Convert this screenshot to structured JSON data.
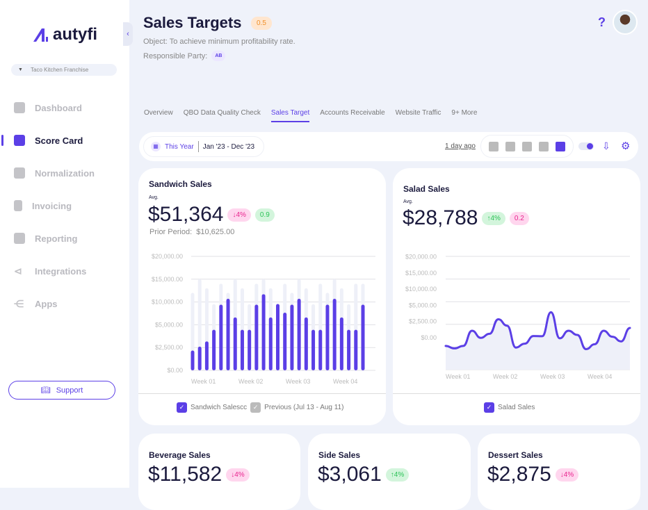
{
  "app": {
    "logo": "autyfi",
    "org": "Taco Kitchen Franchise",
    "support": "Support"
  },
  "sidebar": {
    "items": [
      {
        "label": "Dashboard"
      },
      {
        "label": "Score Card",
        "active": true
      },
      {
        "label": "Normalization"
      },
      {
        "label": "Invoicing"
      },
      {
        "label": "Reporting"
      },
      {
        "label": "Integrations"
      },
      {
        "label": "Apps"
      }
    ]
  },
  "header": {
    "title": "Sales Targets",
    "score": "0.5",
    "object": "Object:  To achieve minimum profitability rate.",
    "responsible_label": "Responsible Party:",
    "responsible": "AB",
    "help": "?"
  },
  "tabs": [
    "Overview",
    "QBO Data Quality Check",
    "Sales Target",
    "Accounts Receivable",
    "Website Traffic",
    "9+ More"
  ],
  "active_tab": "Sales Target",
  "toolbar": {
    "period": "This Year",
    "range": "Jan '23 - Dec '23",
    "updated": "1 day ago"
  },
  "colors": {
    "accent": "#5b3fe6",
    "prev": "#eef0f8"
  },
  "cards": {
    "sandwich": {
      "title": "Sandwich Sales",
      "avg_label": "Avg.",
      "value": "$51,364",
      "change": "↓4%",
      "score": "0.9",
      "prior_label": "Prior Period:",
      "prior": "$10,625.00",
      "legend": [
        "Sandwich Salescc",
        "Previous (Jul 13 - Aug 11)"
      ]
    },
    "salad": {
      "title": "Salad Sales",
      "avg_label": "Avg.",
      "value": "$28,788",
      "change": "↑4%",
      "score": "0.2",
      "legend": [
        "Salad Sales"
      ]
    },
    "beverage": {
      "title": "Beverage Sales",
      "value": "$11,582",
      "change": "↓4%"
    },
    "side": {
      "title": "Side Sales",
      "value": "$3,061",
      "change": "↑4%"
    },
    "dessert": {
      "title": "Dessert Sales",
      "value": "$2,875",
      "change": "↓4%"
    }
  },
  "chart_data": [
    {
      "type": "bar",
      "title": "Sandwich Sales",
      "ticks": [
        0,
        2500,
        5000,
        10000,
        15000,
        20000
      ],
      "tick_labels": [
        "$0.00",
        "$2,500.00",
        "$5,000.00",
        "$10,000.00",
        "$15,000.00",
        "$20,000.00"
      ],
      "x_labels": [
        "Week 01",
        "Week 02",
        "Week 03",
        "Week 04"
      ],
      "series": [
        {
          "name": "Sandwich Salescc",
          "values": [
            2175,
            2600,
            3175,
            4450,
            9400,
            10700,
            6600,
            4450,
            4450,
            9400,
            11700,
            6600,
            9550,
            7650,
            9400,
            10700,
            6600,
            4450,
            4450,
            9400,
            10700,
            6600,
            4450,
            4450,
            9400
          ]
        },
        {
          "name": "Previous (Jul 13 - Aug 11)",
          "values": [
            12000,
            15000,
            13000,
            9500,
            14000,
            12000,
            15000,
            13000,
            9500,
            14000,
            15000,
            13000,
            9500,
            14000,
            12000,
            15000,
            13000,
            9500,
            14000,
            12000,
            15000,
            13000,
            9500,
            14000,
            14000
          ]
        }
      ]
    },
    {
      "type": "area",
      "title": "Salad Sales",
      "ticks": [
        0,
        2500,
        5000,
        10000,
        15000,
        20000
      ],
      "tick_labels": [
        "$0.00",
        "$2,500.00",
        "$5,000.00",
        "$10,000.00",
        "$15,000.00",
        "$20,000.00"
      ],
      "x_labels": [
        "Week 01",
        "Week 02",
        "Week 03",
        "Week 04"
      ],
      "series": [
        {
          "name": "Salad Sales",
          "values": [
            -1275,
            -1650,
            -1275,
            1075,
            -25,
            600,
            2850,
            1850,
            -1525,
            -925,
            250,
            225,
            3925,
            -100,
            1075,
            425,
            -1775,
            -1000,
            1075,
            150,
            -575,
            1500
          ]
        }
      ]
    }
  ]
}
